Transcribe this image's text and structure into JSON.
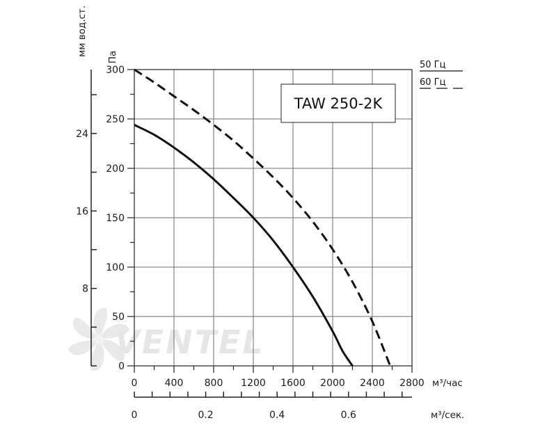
{
  "watermark": {
    "text": "VENTEL"
  },
  "legend": {
    "items": [
      {
        "label": "50 Гц",
        "style": "solid"
      },
      {
        "label": "60 Гц",
        "style": "dashed"
      }
    ]
  },
  "chart_data": {
    "type": "line",
    "title": "TAW 250-2K",
    "x_axis": {
      "unit": "м³/час",
      "range": [
        0,
        2800
      ],
      "ticks": [
        0,
        400,
        800,
        1200,
        1600,
        2000,
        2400,
        2800
      ],
      "minor_step": 200
    },
    "x2_axis": {
      "unit": "м³/сек.",
      "range": [
        0,
        0.7778
      ],
      "ticks": [
        "0",
        "0.2",
        "0.4",
        "0.6"
      ],
      "tick_values": [
        0,
        0.2,
        0.4,
        0.6
      ],
      "minor_step": 0.05
    },
    "y_axis": {
      "unit": "Па",
      "range": [
        0,
        300
      ],
      "ticks": [
        0,
        50,
        100,
        150,
        200,
        250,
        300
      ],
      "minor_step": 25
    },
    "y2_axis": {
      "unit": "мм вод.ст.",
      "range": [
        0,
        30.6
      ],
      "ticks": [
        "8",
        "16",
        "24"
      ],
      "tick_values": [
        8,
        16,
        24
      ],
      "minor_step": 4
    },
    "grid": true,
    "series": [
      {
        "name": "50 Гц",
        "style": "solid",
        "x": [
          0,
          200,
          400,
          600,
          800,
          1000,
          1200,
          1400,
          1600,
          1800,
          2000,
          2100,
          2200
        ],
        "y": [
          244,
          234,
          221,
          206,
          189,
          170,
          150,
          127,
          100,
          70,
          35,
          15,
          0
        ]
      },
      {
        "name": "60 Гц",
        "style": "dashed",
        "x": [
          0,
          200,
          400,
          600,
          800,
          1000,
          1200,
          1400,
          1600,
          1800,
          2000,
          2200,
          2400,
          2580
        ],
        "y": [
          300,
          287,
          273,
          259,
          244,
          228,
          210,
          191,
          170,
          146,
          118,
          85,
          45,
          0
        ]
      }
    ]
  }
}
